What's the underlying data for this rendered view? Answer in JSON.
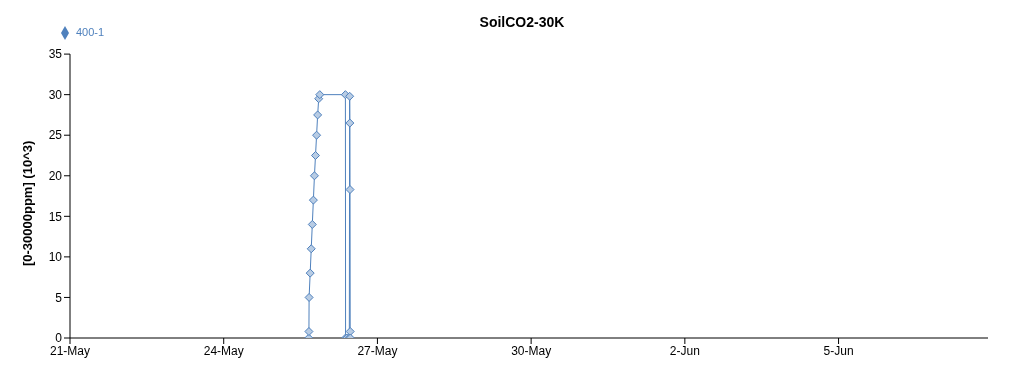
{
  "chart_data": {
    "type": "line",
    "title": "SoilCO2-30K",
    "ylabel": "[0-30000ppm] (10^3)",
    "x": [
      "--05-25T15:50",
      "--05-25T15:55",
      "--05-25T16:00",
      "--05-25T16:30",
      "--05-25T17:00",
      "--05-25T17:30",
      "--05-25T18:00",
      "--05-25T18:30",
      "--05-25T19:00",
      "--05-25T19:30",
      "--05-25T20:00",
      "--05-25T20:30",
      "--05-25T21:00",
      "--05-26T09:00",
      "--05-26T09:05",
      "--05-26T09:40",
      "--05-26T10:50",
      "--05-26T11:00",
      "--05-26T11:05",
      "--05-26T11:10",
      "--05-26T11:15",
      "--05-26T11:20"
    ],
    "series": [
      {
        "name": "400-1",
        "color": "#4f81bd",
        "values": [
          0,
          0.8,
          5,
          8,
          11,
          14,
          17,
          20,
          22.5,
          25,
          27.5,
          29.5,
          30,
          30,
          0,
          0,
          0,
          29.8,
          26.5,
          18.3,
          0.8,
          0
        ]
      }
    ],
    "xlim": [
      "--05-21",
      "--06-07T22:00"
    ],
    "xticks": [
      {
        "value": "--05-21",
        "label": "21-May"
      },
      {
        "value": "--05-24",
        "label": "24-May"
      },
      {
        "value": "--05-27",
        "label": "27-May"
      },
      {
        "value": "--05-30",
        "label": "30-May"
      },
      {
        "value": "--06-02",
        "label": "2-Jun"
      },
      {
        "value": "--06-05",
        "label": "5-Jun"
      }
    ],
    "ylim": [
      0,
      35
    ],
    "yticks": [
      0,
      5,
      10,
      15,
      20,
      25,
      30,
      35
    ],
    "grid": false,
    "legend": "top left",
    "marker": "diamond",
    "line_style": "solid"
  }
}
